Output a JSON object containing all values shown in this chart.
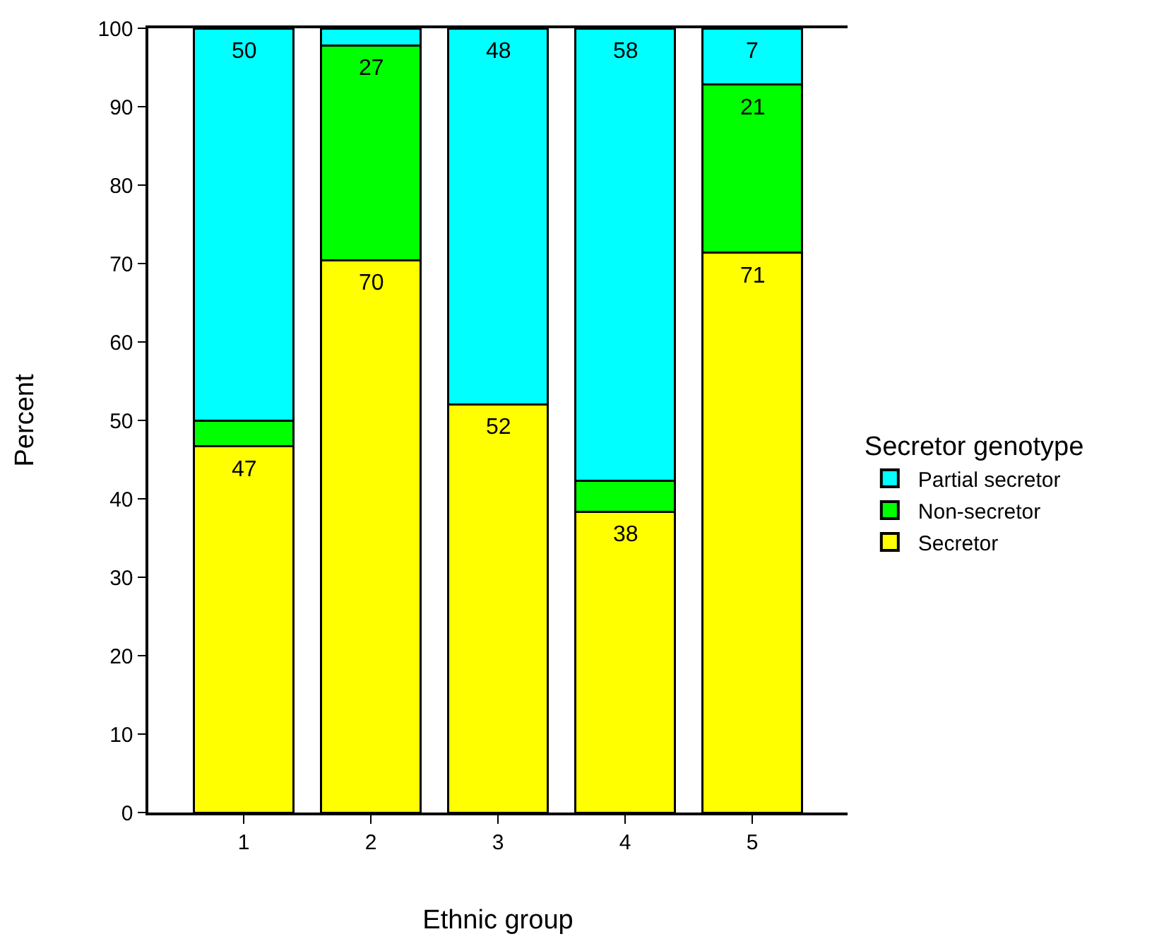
{
  "chart_data": {
    "type": "bar",
    "stacked": true,
    "xlabel": "Ethnic group",
    "ylabel": "Percent",
    "legend_title": "Secretor genotype",
    "legend": "right",
    "categories": [
      "1",
      "2",
      "3",
      "4",
      "5"
    ],
    "series": [
      {
        "name": "Secretor",
        "color": "#ffff00",
        "values": [
          46.7,
          70.4,
          52,
          38.3,
          71.4
        ],
        "value_labels": [
          "47",
          "70",
          "52",
          "38",
          "71"
        ]
      },
      {
        "name": "Non-secretor",
        "color": "#00ff00",
        "values": [
          3.3,
          27.4,
          0,
          4,
          21.4
        ],
        "value_labels": [
          null,
          "27",
          null,
          null,
          "21"
        ]
      },
      {
        "name": "Partial secretor",
        "color": "#00ffff",
        "values": [
          50,
          2.2,
          48,
          57.7,
          7.2
        ],
        "value_labels": [
          "50",
          null,
          "48",
          "58",
          "7"
        ]
      }
    ],
    "ylim": [
      0,
      100
    ],
    "yticks": [
      0,
      10,
      20,
      30,
      40,
      50,
      60,
      70,
      80,
      90,
      100
    ]
  }
}
